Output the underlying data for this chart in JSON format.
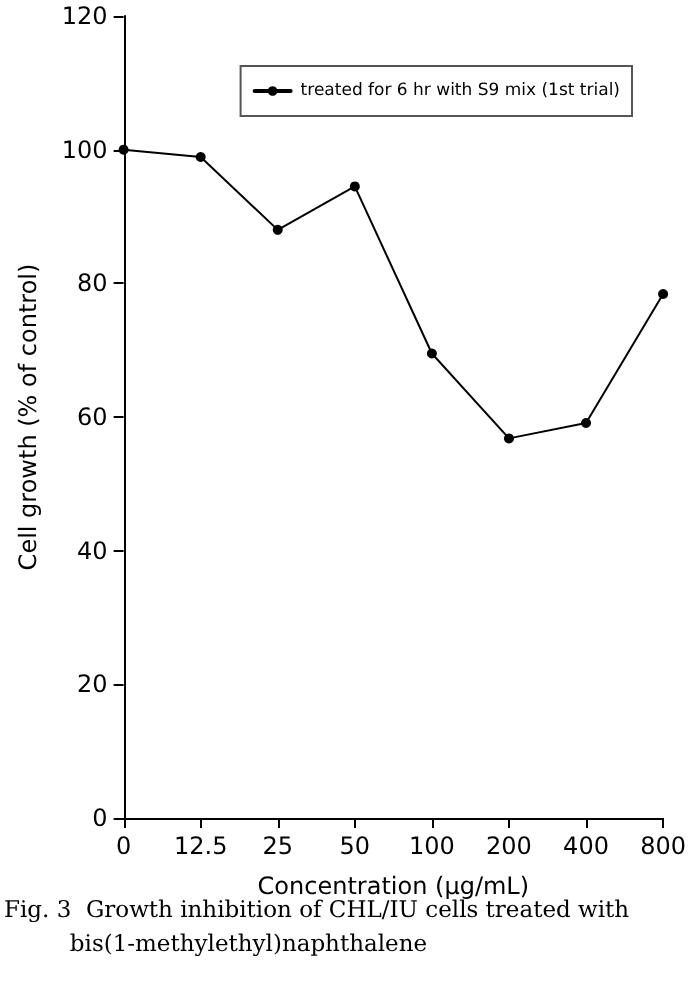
{
  "chart_data": {
    "type": "line",
    "xlabel": "Concentration (μg/mL)",
    "ylabel": "Cell growth (% of control)",
    "categories": [
      "0",
      "12.5",
      "25",
      "50",
      "100",
      "200",
      "400",
      "800"
    ],
    "series": [
      {
        "name": "treated for 6 hr with S9 mix (1st trial)",
        "color": "#000000",
        "values": [
          100,
          98.9,
          88,
          94.5,
          69.5,
          56.8,
          59.1,
          78.4
        ]
      }
    ],
    "ylim": [
      0,
      120
    ],
    "yticks": [
      0,
      20,
      40,
      60,
      80,
      100,
      120
    ],
    "grid": false,
    "legend": "top right",
    "marker": "circle",
    "line_style": "solid",
    "annotations": [
      "Fig. 3  Growth inhibition of CHL/IU cells treated with\n         bis(1-methylethyl)naphthalene"
    ]
  }
}
